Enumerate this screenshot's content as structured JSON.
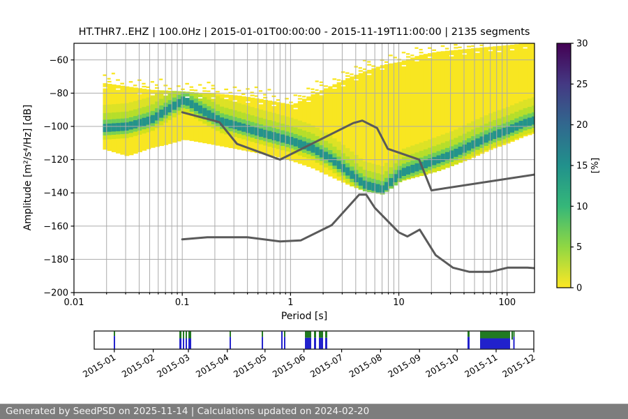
{
  "title": "HT.THR7..EHZ | 100.0Hz | 2015-01-01T00:00:00 - 2015-11-19T11:00:00 | 2135 segments",
  "footer": {
    "text": "Generated by SeedPSD on 2025-11-14 | Calculations updated on 2024-02-20"
  },
  "axes": {
    "xlabel": "Period [s]",
    "ylabel": "Amplitude [m²/s⁴/Hz] [dB]",
    "xticks": [
      {
        "v": 0.01,
        "label": "0.01"
      },
      {
        "v": 0.1,
        "label": "0.1"
      },
      {
        "v": 1,
        "label": "1"
      },
      {
        "v": 10,
        "label": "10"
      },
      {
        "v": 100,
        "label": "100"
      }
    ],
    "yticks": [
      {
        "v": -60,
        "label": "−60"
      },
      {
        "v": -80,
        "label": "−80"
      },
      {
        "v": -100,
        "label": "−100"
      },
      {
        "v": -120,
        "label": "−120"
      },
      {
        "v": -140,
        "label": "−140"
      },
      {
        "v": -160,
        "label": "−160"
      },
      {
        "v": -180,
        "label": "−180"
      },
      {
        "v": -200,
        "label": "−200"
      }
    ]
  },
  "colorbar": {
    "label": "[%]",
    "min": 0,
    "max": 30,
    "ticks": [
      {
        "v": 0,
        "label": "0"
      },
      {
        "v": 5,
        "label": "5"
      },
      {
        "v": 10,
        "label": "10"
      },
      {
        "v": 15,
        "label": "15"
      },
      {
        "v": 20,
        "label": "20"
      },
      {
        "v": 25,
        "label": "25"
      },
      {
        "v": 30,
        "label": "30"
      }
    ],
    "stops": [
      {
        "v": 0,
        "color": "#fde725"
      },
      {
        "v": 5,
        "color": "#90d743"
      },
      {
        "v": 10,
        "color": "#35b779"
      },
      {
        "v": 15,
        "color": "#21918c"
      },
      {
        "v": 20,
        "color": "#31688e"
      },
      {
        "v": 25,
        "color": "#443983"
      },
      {
        "v": 30,
        "color": "#440154"
      }
    ]
  },
  "chart_data": {
    "type": "heatmap",
    "title": "HT.THR7..EHZ | 100.0Hz | 2015-01-01T00:00:00 - 2015-11-19T11:00:00 | 2135 segments",
    "xlabel": "Period [s]",
    "ylabel": "Amplitude [m²/s⁴/Hz] [dB]",
    "xscale": "log",
    "xlim": [
      0.01,
      179
    ],
    "ylim": [
      -200,
      -50
    ],
    "colorbar_label": "[%]",
    "colorbar_range": [
      0,
      30
    ],
    "grid": true,
    "ppsd_envelope": {
      "comment_units": "probability density envelope of PPSD, dB vs period in s",
      "periods": [
        0.0185,
        0.03,
        0.05,
        0.07,
        0.1,
        0.15,
        0.22,
        0.32,
        0.46,
        0.68,
        1.0,
        1.5,
        2.2,
        3.2,
        4.6,
        6.8,
        10,
        15,
        22,
        32,
        46,
        68,
        100,
        140,
        179
      ],
      "top_db": [
        -74,
        -76,
        -78,
        -78.5,
        -79,
        -80,
        -80.5,
        -81.5,
        -83,
        -85,
        -87,
        -81,
        -76,
        -71,
        -67,
        -63,
        -61,
        -57,
        -55,
        -54,
        -53,
        -52,
        -51,
        -50,
        -50
      ],
      "mode_db": [
        -101,
        -100,
        -96,
        -90,
        -84,
        -91,
        -97,
        -100,
        -103,
        -106,
        -109,
        -113,
        -119,
        -127,
        -135,
        -138,
        -128,
        -124,
        -120,
        -116,
        -111,
        -106,
        -102,
        -98,
        -96
      ],
      "bottom_db": [
        -114,
        -118,
        -113,
        -111,
        -108,
        -110,
        -112,
        -114,
        -116,
        -118,
        -121,
        -125,
        -130,
        -135,
        -139,
        -141,
        -133,
        -130,
        -127,
        -123,
        -119,
        -114,
        -110,
        -106,
        -104
      ]
    },
    "noise_models": {
      "nhnm": [
        [
          0.1,
          -91.5
        ],
        [
          0.22,
          -97.4
        ],
        [
          0.32,
          -110.5
        ],
        [
          0.8,
          -120.0
        ],
        [
          3.8,
          -98.0
        ],
        [
          4.6,
          -96.5
        ],
        [
          6.3,
          -101.0
        ],
        [
          7.9,
          -113.5
        ],
        [
          15.4,
          -120.0
        ],
        [
          20.0,
          -138.5
        ],
        [
          179.0,
          -129.0
        ]
      ],
      "nlnm": [
        [
          0.1,
          -168.0
        ],
        [
          0.17,
          -166.7
        ],
        [
          0.4,
          -166.7
        ],
        [
          0.8,
          -169.2
        ],
        [
          1.24,
          -168.6
        ],
        [
          2.4,
          -159.4
        ],
        [
          4.3,
          -141.1
        ],
        [
          5.0,
          -141.1
        ],
        [
          6.0,
          -149.0
        ],
        [
          10.0,
          -163.8
        ],
        [
          12.0,
          -166.2
        ],
        [
          15.6,
          -162.1
        ],
        [
          21.9,
          -177.5
        ],
        [
          31.6,
          -185.0
        ],
        [
          45.0,
          -187.5
        ],
        [
          70.0,
          -187.5
        ],
        [
          101.0,
          -185.0
        ],
        [
          154.0,
          -185.0
        ],
        [
          179.0,
          -185.3
        ]
      ]
    },
    "palette": {
      "base_yellow": "#f8e621",
      "band_l1": "#dce226",
      "band_l2": "#b5de2b",
      "band_l3": "#6ece58",
      "band_core": "#23938b",
      "band_l4": "#7ad151",
      "band_l5": "#d2e21b",
      "grid_color": "#ababab",
      "noise_model_color": "#5a5a5a",
      "spine_color": "#000000"
    }
  },
  "timeline": {
    "months": [
      {
        "label": "2015-01",
        "day": 0
      },
      {
        "label": "2015-02",
        "day": 31
      },
      {
        "label": "2015-03",
        "day": 59
      },
      {
        "label": "2015-04",
        "day": 90
      },
      {
        "label": "2015-05",
        "day": 120
      },
      {
        "label": "2015-06",
        "day": 151
      },
      {
        "label": "2015-07",
        "day": 181
      },
      {
        "label": "2015-08",
        "day": 212
      },
      {
        "label": "2015-09",
        "day": 243
      },
      {
        "label": "2015-10",
        "day": 273
      },
      {
        "label": "2015-11",
        "day": 304
      },
      {
        "label": "2015-12",
        "day": 334
      }
    ],
    "colors": {
      "green": "#217a21",
      "blue": "#2121cc"
    },
    "segments": [
      {
        "f": 0.0444,
        "w": 2,
        "g": 0.25,
        "b": true
      },
      {
        "f": 0.1937,
        "w": 3,
        "g": 0.38,
        "b": true
      },
      {
        "f": 0.2016,
        "w": 2,
        "g": 0.38,
        "b": true
      },
      {
        "f": 0.2079,
        "w": 2,
        "g": 0.38,
        "b": true
      },
      {
        "f": 0.2143,
        "w": 4,
        "g": 0.38,
        "b": true
      },
      {
        "f": 0.3079,
        "w": 2,
        "g": 0.3,
        "b": true
      },
      {
        "f": 0.381,
        "w": 2,
        "g": 0.3,
        "b": true
      },
      {
        "f": 0.4254,
        "w": 2,
        "g": 0.0,
        "b": true
      },
      {
        "f": 0.4317,
        "w": 2,
        "g": 0.3,
        "b": true
      },
      {
        "f": 0.4794,
        "w": 9,
        "g": 0.35,
        "b": true
      },
      {
        "f": 0.5,
        "w": 3,
        "g": 0.35,
        "b": true
      },
      {
        "f": 0.5111,
        "w": 6,
        "g": 0.35,
        "b": true
      },
      {
        "f": 0.5254,
        "w": 3,
        "g": 0.35,
        "b": true
      },
      {
        "f": 0.8492,
        "w": 3,
        "g": 0.3,
        "b": true
      },
      {
        "f": 0.8778,
        "w": 43,
        "g": 0.38,
        "b": true
      },
      {
        "f": 0.9492,
        "w": 2,
        "g": 0.45,
        "b": false
      },
      {
        "f": 0.9532,
        "w": 2,
        "g": 0.3,
        "b": true
      }
    ]
  }
}
